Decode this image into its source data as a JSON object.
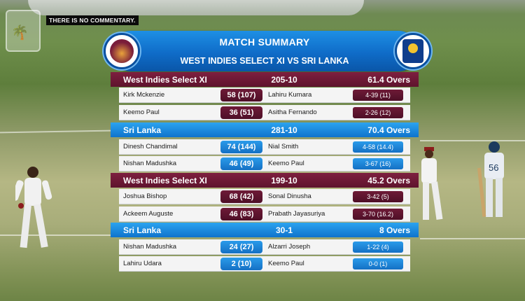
{
  "overlay": {
    "commentary_notice": "THERE IS NO COMMENTARY."
  },
  "summary": {
    "title": "MATCH SUMMARY",
    "fixture": "WEST INDIES SELECT XI VS SRI LANKA",
    "innings": [
      {
        "team": "West Indies Select XI",
        "score": "205-10",
        "overs": "61.4 Overs",
        "theme": "maroon",
        "batting": [
          {
            "name": "Kirk Mckenzie",
            "score": "58 (107)"
          },
          {
            "name": "Keemo Paul",
            "score": "36 (51)"
          }
        ],
        "bowling": [
          {
            "name": "Lahiru Kumara",
            "figures": "4-39 (11)"
          },
          {
            "name": "Asitha Fernando",
            "figures": "2-26 (12)"
          }
        ]
      },
      {
        "team": "Sri Lanka",
        "score": "281-10",
        "overs": "70.4 Overs",
        "theme": "blue",
        "batting": [
          {
            "name": "Dinesh Chandimal",
            "score": "74 (144)"
          },
          {
            "name": "Nishan Madushka",
            "score": "46 (49)"
          }
        ],
        "bowling": [
          {
            "name": "Nial Smith",
            "figures": "4-58 (14.4)"
          },
          {
            "name": "Keemo Paul",
            "figures": "3-67 (16)"
          }
        ]
      },
      {
        "team": "West Indies Select XI",
        "score": "199-10",
        "overs": "45.2 Overs",
        "theme": "maroon",
        "batting": [
          {
            "name": "Joshua Bishop",
            "score": "68 (42)"
          },
          {
            "name": "Ackeem Auguste",
            "score": "46 (83)"
          }
        ],
        "bowling": [
          {
            "name": "Sonal Dinusha",
            "figures": "3-42 (5)"
          },
          {
            "name": "Prabath Jayasuriya",
            "figures": "3-70 (16.2)"
          }
        ]
      },
      {
        "team": "Sri Lanka",
        "score": "30-1",
        "overs": "8 Overs",
        "theme": "blue",
        "batting": [
          {
            "name": "Nishan Madushka",
            "score": "24 (27)"
          },
          {
            "name": "Lahiru Udara",
            "score": "2 (10)"
          }
        ],
        "bowling": [
          {
            "name": "Alzarri Joseph",
            "figures": "1-22 (4)"
          },
          {
            "name": "Keemo Paul",
            "figures": "0-0 (1)"
          }
        ]
      }
    ]
  },
  "colors": {
    "maroon": "#6e1a37",
    "blue": "#1a86dc",
    "header_blue": "#0f6cc8"
  },
  "icons": [
    "west-indies-logo-icon",
    "sri-lanka-cricket-logo-icon",
    "broadcaster-watermark-icon"
  ]
}
